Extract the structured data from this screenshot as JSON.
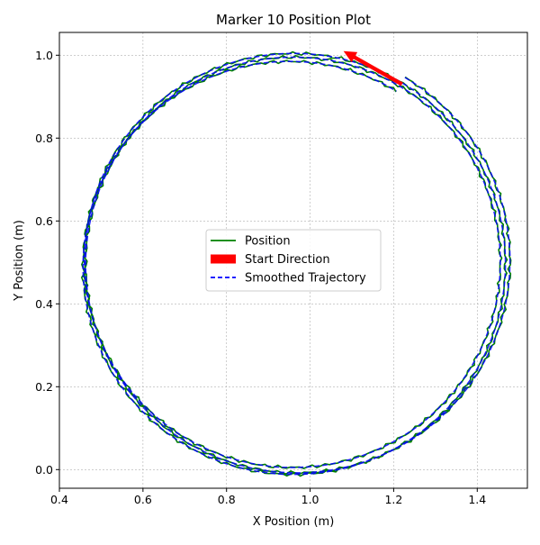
{
  "chart_data": {
    "type": "line",
    "title": "Marker 10 Position Plot",
    "xlabel": "X Position (m)",
    "ylabel": "Y Position (m)",
    "xlim": [
      0.4,
      1.52
    ],
    "ylim": [
      -0.045,
      1.055
    ],
    "xticks": [
      0.4,
      0.6,
      0.8,
      1.0,
      1.2,
      1.4
    ],
    "xtick_labels": [
      "0.4",
      "0.6",
      "0.8",
      "1.0",
      "1.2",
      "1.4"
    ],
    "yticks": [
      0.0,
      0.2,
      0.4,
      0.6,
      0.8,
      1.0
    ],
    "ytick_labels": [
      "0.0",
      "0.2",
      "0.4",
      "0.6",
      "0.8",
      "1.0"
    ],
    "grid": true,
    "legend_position": "center",
    "center": [
      0.96,
      0.5
    ],
    "radius": 0.505,
    "turns": 3,
    "series": [
      {
        "name": "Position",
        "color": "#008000",
        "style": "solid"
      },
      {
        "name": "Start Direction",
        "color": "#ff0000",
        "style": "arrow",
        "from": [
          1.22,
          0.93
        ],
        "to": [
          1.08,
          1.01
        ]
      },
      {
        "name": "Smoothed Trajectory",
        "color": "#0000ff",
        "style": "dashed"
      }
    ]
  }
}
